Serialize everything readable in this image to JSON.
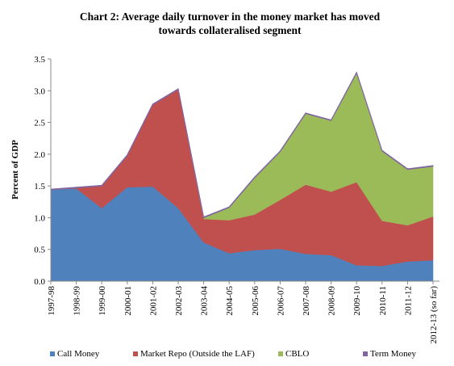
{
  "chart_data": {
    "type": "stacked_area",
    "title": "Chart 2:  Average daily turnover in the money market has moved towards collateralised segment",
    "y_label": "Percent of GDP",
    "categories": [
      "1997-98",
      "1998-99",
      "1999-00",
      "2000-01",
      "2001-02",
      "2002-03",
      "2003-04",
      "2004-05",
      "2005-06",
      "2006-07",
      "2007-08",
      "2008-09",
      "2009-10",
      "2010-11",
      "2011-12",
      "2012-13 (so far)"
    ],
    "series": [
      {
        "name": "Call Money",
        "color": "#4f81bd",
        "values": [
          1.44,
          1.46,
          1.15,
          1.48,
          1.49,
          1.15,
          0.61,
          0.44,
          0.49,
          0.51,
          0.43,
          0.41,
          0.25,
          0.24,
          0.31,
          0.33
        ]
      },
      {
        "name": "Market Repo (Outside the LAF)",
        "color": "#c0504d",
        "values": [
          0,
          0.01,
          0.35,
          0.5,
          1.29,
          1.87,
          0.37,
          0.52,
          0.56,
          0.77,
          1.09,
          1.0,
          1.31,
          0.71,
          0.57,
          0.69
        ]
      },
      {
        "name": "CBLO",
        "color": "#9bbb59",
        "values": [
          0,
          0,
          0,
          0,
          0,
          0,
          0.02,
          0.2,
          0.58,
          0.76,
          1.12,
          1.12,
          1.72,
          1.1,
          0.88,
          0.79
        ]
      },
      {
        "name": "Term Money",
        "color": "#8064a2",
        "values": [
          0.01,
          0.01,
          0.01,
          0.01,
          0.01,
          0.01,
          0.01,
          0.01,
          0.01,
          0.01,
          0.01,
          0.01,
          0.01,
          0.01,
          0.01,
          0.01
        ]
      }
    ],
    "ylim": [
      0,
      3.5
    ],
    "yticks": [
      {
        "value": 0,
        "label": "0.0"
      },
      0.5,
      {
        "value": 1,
        "label": "1.0"
      },
      1.5,
      {
        "value": 2,
        "label": "2.0"
      },
      2.5,
      {
        "value": 3,
        "label": "3.0"
      },
      3.5
    ],
    "grid": false,
    "legend": "bottom"
  }
}
